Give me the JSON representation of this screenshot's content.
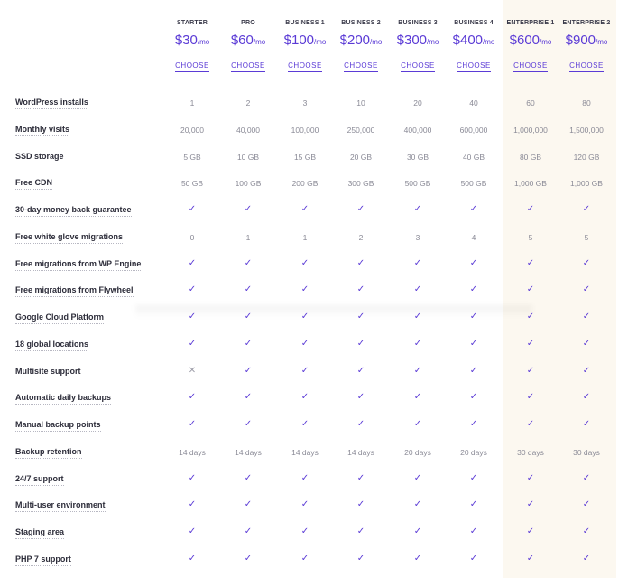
{
  "plans": [
    {
      "name": "STARTER",
      "price": "$30",
      "per": "/mo",
      "cta": "CHOOSE"
    },
    {
      "name": "PRO",
      "price": "$60",
      "per": "/mo",
      "cta": "CHOOSE"
    },
    {
      "name": "BUSINESS 1",
      "price": "$100",
      "per": "/mo",
      "cta": "CHOOSE"
    },
    {
      "name": "BUSINESS 2",
      "price": "$200",
      "per": "/mo",
      "cta": "CHOOSE"
    },
    {
      "name": "BUSINESS 3",
      "price": "$300",
      "per": "/mo",
      "cta": "CHOOSE"
    },
    {
      "name": "BUSINESS 4",
      "price": "$400",
      "per": "/mo",
      "cta": "CHOOSE"
    },
    {
      "name": "ENTERPRISE 1",
      "price": "$600",
      "per": "/mo",
      "cta": "CHOOSE"
    },
    {
      "name": "ENTERPRISE 2",
      "price": "$900",
      "per": "/mo",
      "cta": "CHOOSE"
    }
  ],
  "icons": {
    "check": "check-icon",
    "cross": "cross-icon"
  },
  "colors": {
    "accent": "#5b3bd6",
    "enterprise_bg": "#fcf8f0",
    "text": "#2d2d3a",
    "muted": "#8a8a96"
  },
  "features": [
    {
      "label": "WordPress installs",
      "values": [
        "1",
        "2",
        "3",
        "10",
        "20",
        "40",
        "60",
        "80"
      ]
    },
    {
      "label": "Monthly visits",
      "values": [
        "20,000",
        "40,000",
        "100,000",
        "250,000",
        "400,000",
        "600,000",
        "1,000,000",
        "1,500,000"
      ]
    },
    {
      "label": "SSD storage",
      "values": [
        "5 GB",
        "10 GB",
        "15 GB",
        "20 GB",
        "30 GB",
        "40 GB",
        "80 GB",
        "120 GB"
      ]
    },
    {
      "label": "Free CDN",
      "values": [
        "50 GB",
        "100 GB",
        "200 GB",
        "300 GB",
        "500 GB",
        "500 GB",
        "1,000 GB",
        "1,000 GB"
      ]
    },
    {
      "label": "30-day money back guarantee",
      "values": [
        "check",
        "check",
        "check",
        "check",
        "check",
        "check",
        "check",
        "check"
      ]
    },
    {
      "label": "Free white glove migrations",
      "values": [
        "0",
        "1",
        "1",
        "2",
        "3",
        "4",
        "5",
        "5"
      ]
    },
    {
      "label": "Free migrations from WP Engine",
      "values": [
        "check",
        "check",
        "check",
        "check",
        "check",
        "check",
        "check",
        "check"
      ]
    },
    {
      "label": "Free migrations from Flywheel",
      "values": [
        "check",
        "check",
        "check",
        "check",
        "check",
        "check",
        "check",
        "check"
      ]
    },
    {
      "label": "Google Cloud Platform",
      "values": [
        "check",
        "check",
        "check",
        "check",
        "check",
        "check",
        "check",
        "check"
      ]
    },
    {
      "label": "18 global locations",
      "values": [
        "check",
        "check",
        "check",
        "check",
        "check",
        "check",
        "check",
        "check"
      ]
    },
    {
      "label": "Multisite support",
      "values": [
        "cross",
        "check",
        "check",
        "check",
        "check",
        "check",
        "check",
        "check"
      ]
    },
    {
      "label": "Automatic daily backups",
      "values": [
        "check",
        "check",
        "check",
        "check",
        "check",
        "check",
        "check",
        "check"
      ]
    },
    {
      "label": "Manual backup points",
      "values": [
        "check",
        "check",
        "check",
        "check",
        "check",
        "check",
        "check",
        "check"
      ]
    },
    {
      "label": "Backup retention",
      "values": [
        "14 days",
        "14 days",
        "14 days",
        "14 days",
        "20 days",
        "20 days",
        "30 days",
        "30 days"
      ]
    },
    {
      "label": "24/7 support",
      "values": [
        "check",
        "check",
        "check",
        "check",
        "check",
        "check",
        "check",
        "check"
      ]
    },
    {
      "label": "Multi-user environment",
      "values": [
        "check",
        "check",
        "check",
        "check",
        "check",
        "check",
        "check",
        "check"
      ]
    },
    {
      "label": "Staging area",
      "values": [
        "check",
        "check",
        "check",
        "check",
        "check",
        "check",
        "check",
        "check"
      ]
    },
    {
      "label": "PHP 7 support",
      "values": [
        "check",
        "check",
        "check",
        "check",
        "check",
        "check",
        "check",
        "check"
      ]
    }
  ]
}
